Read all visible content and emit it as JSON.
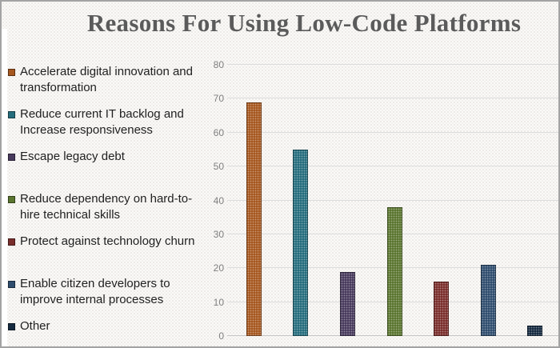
{
  "title": "Reasons For Using Low-Code Platforms",
  "legend": {
    "items": [
      {
        "label": "Accelerate digital innovation and transformation",
        "lines": [
          "Accelerate digital innovation and",
          "transformation"
        ]
      },
      {
        "label": "Reduce current IT backlog and Increase responsiveness",
        "lines": [
          "Reduce current IT backlog and",
          "Increase responsiveness"
        ]
      },
      {
        "label": "Escape legacy debt",
        "lines": [
          "Escape legacy debt"
        ]
      },
      {
        "label": "Reduce dependency on hard-to-hire technical skills",
        "lines": [
          "Reduce dependency on hard-to-",
          "hire technical skills"
        ]
      },
      {
        "label": "Protect against technology churn",
        "lines": [
          "Protect against technology churn"
        ]
      },
      {
        "label": "Enable citizen developers to improve internal processes",
        "lines": [
          "Enable citizen developers to",
          "improve internal processes"
        ]
      },
      {
        "label": "Other",
        "lines": [
          "Other"
        ]
      }
    ]
  },
  "chart_data": {
    "type": "bar",
    "title": "Reasons For Using Low-Code Platforms",
    "categories": [
      "Accelerate digital innovation and transformation",
      "Reduce current IT backlog and Increase responsiveness",
      "Escape legacy debt",
      "Reduce dependency on hard-to-hire technical skills",
      "Protect against technology churn",
      "Enable citizen developers to improve internal processes",
      "Other"
    ],
    "values": [
      69,
      55,
      19,
      38,
      16,
      21,
      3
    ],
    "colors": [
      "#a6571f",
      "#256d7d",
      "#483a5d",
      "#5a752f",
      "#7a2e2c",
      "#2f4d6e",
      "#152a40"
    ],
    "xlabel": "",
    "ylabel": "",
    "ylim": [
      0,
      80
    ],
    "yticks": [
      0,
      10,
      20,
      30,
      40,
      50,
      60,
      70,
      80
    ],
    "grid": "horizontal",
    "legend_position": "left",
    "x_tick_labels_shown": false,
    "title_color": "#5b5b5b",
    "gridline_color": "#dcdcdc",
    "tick_label_color": "#7f7f7f"
  }
}
